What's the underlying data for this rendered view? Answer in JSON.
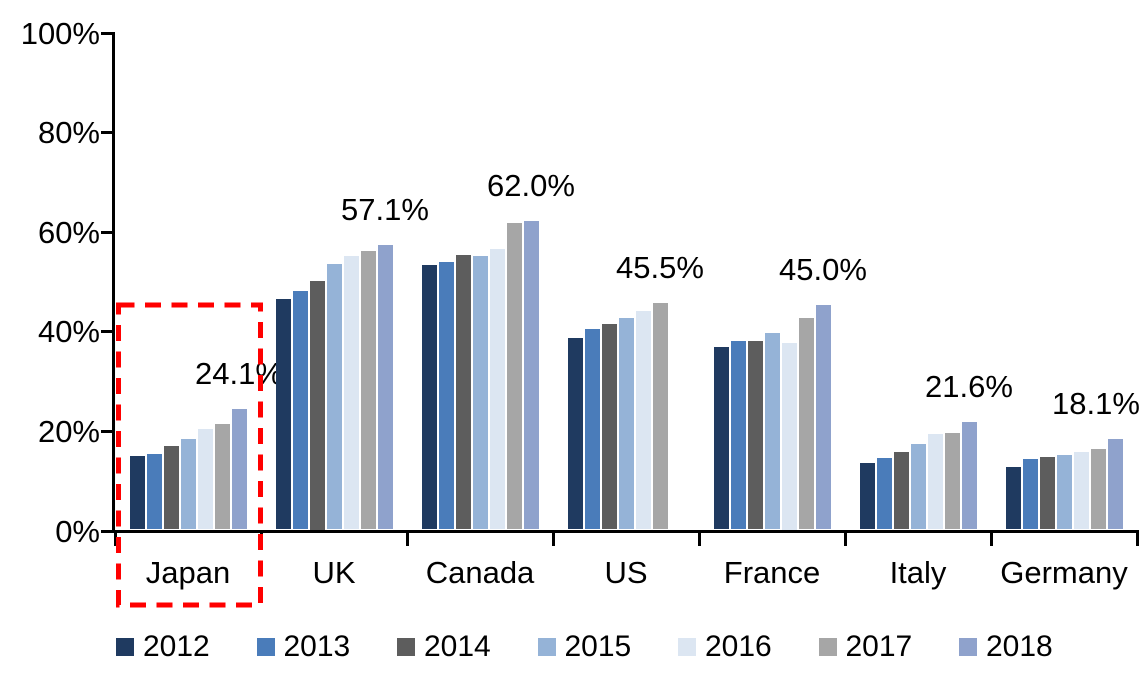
{
  "chart_data": {
    "type": "bar",
    "title": "",
    "xlabel": "",
    "ylabel": "",
    "categories": [
      "Japan",
      "UK",
      "Canada",
      "US",
      "France",
      "Italy",
      "Germany"
    ],
    "series": [
      {
        "name": "2012",
        "color": "#1f3a60",
        "values": [
          14.8,
          46.3,
          53.2,
          38.4,
          36.7,
          13.4,
          12.6
        ]
      },
      {
        "name": "2013",
        "color": "#4a7cba",
        "values": [
          15.1,
          47.9,
          53.8,
          40.3,
          37.9,
          14.3,
          14.1
        ]
      },
      {
        "name": "2014",
        "color": "#5d5d5d",
        "values": [
          16.8,
          50.0,
          55.1,
          41.2,
          37.8,
          15.5,
          14.6
        ]
      },
      {
        "name": "2015",
        "color": "#95b3d7",
        "values": [
          18.2,
          53.4,
          54.9,
          42.4,
          39.5,
          17.1,
          15.0
        ]
      },
      {
        "name": "2016",
        "color": "#dce6f2",
        "values": [
          20.1,
          55.0,
          56.3,
          43.9,
          37.5,
          19.2,
          15.6
        ]
      },
      {
        "name": "2017",
        "color": "#a6a6a6",
        "values": [
          21.2,
          56.0,
          61.6,
          45.5,
          42.5,
          19.4,
          16.2
        ]
      },
      {
        "name": "2018",
        "color": "#8fa2cc",
        "values": [
          24.1,
          57.1,
          62.0,
          null,
          45.0,
          21.6,
          18.1
        ]
      }
    ],
    "data_labels": {
      "Japan": "24.1%",
      "UK": "57.1%",
      "Canada": "62.0%",
      "US": "45.5%",
      "France": "45.0%",
      "Italy": "21.6%",
      "Germany": "18.1%"
    },
    "y_ticks": [
      "100%",
      "80%",
      "60%",
      "40%",
      "20%",
      "0%"
    ],
    "ylim": [
      0,
      100
    ],
    "grid": false,
    "legend_position": "bottom",
    "legend_entries": [
      "2012",
      "2013",
      "2014",
      "2015",
      "2016",
      "2017",
      "2018"
    ],
    "highlight": {
      "target": "Japan",
      "style": "dashed-rectangle",
      "color": "#ff0000"
    }
  }
}
